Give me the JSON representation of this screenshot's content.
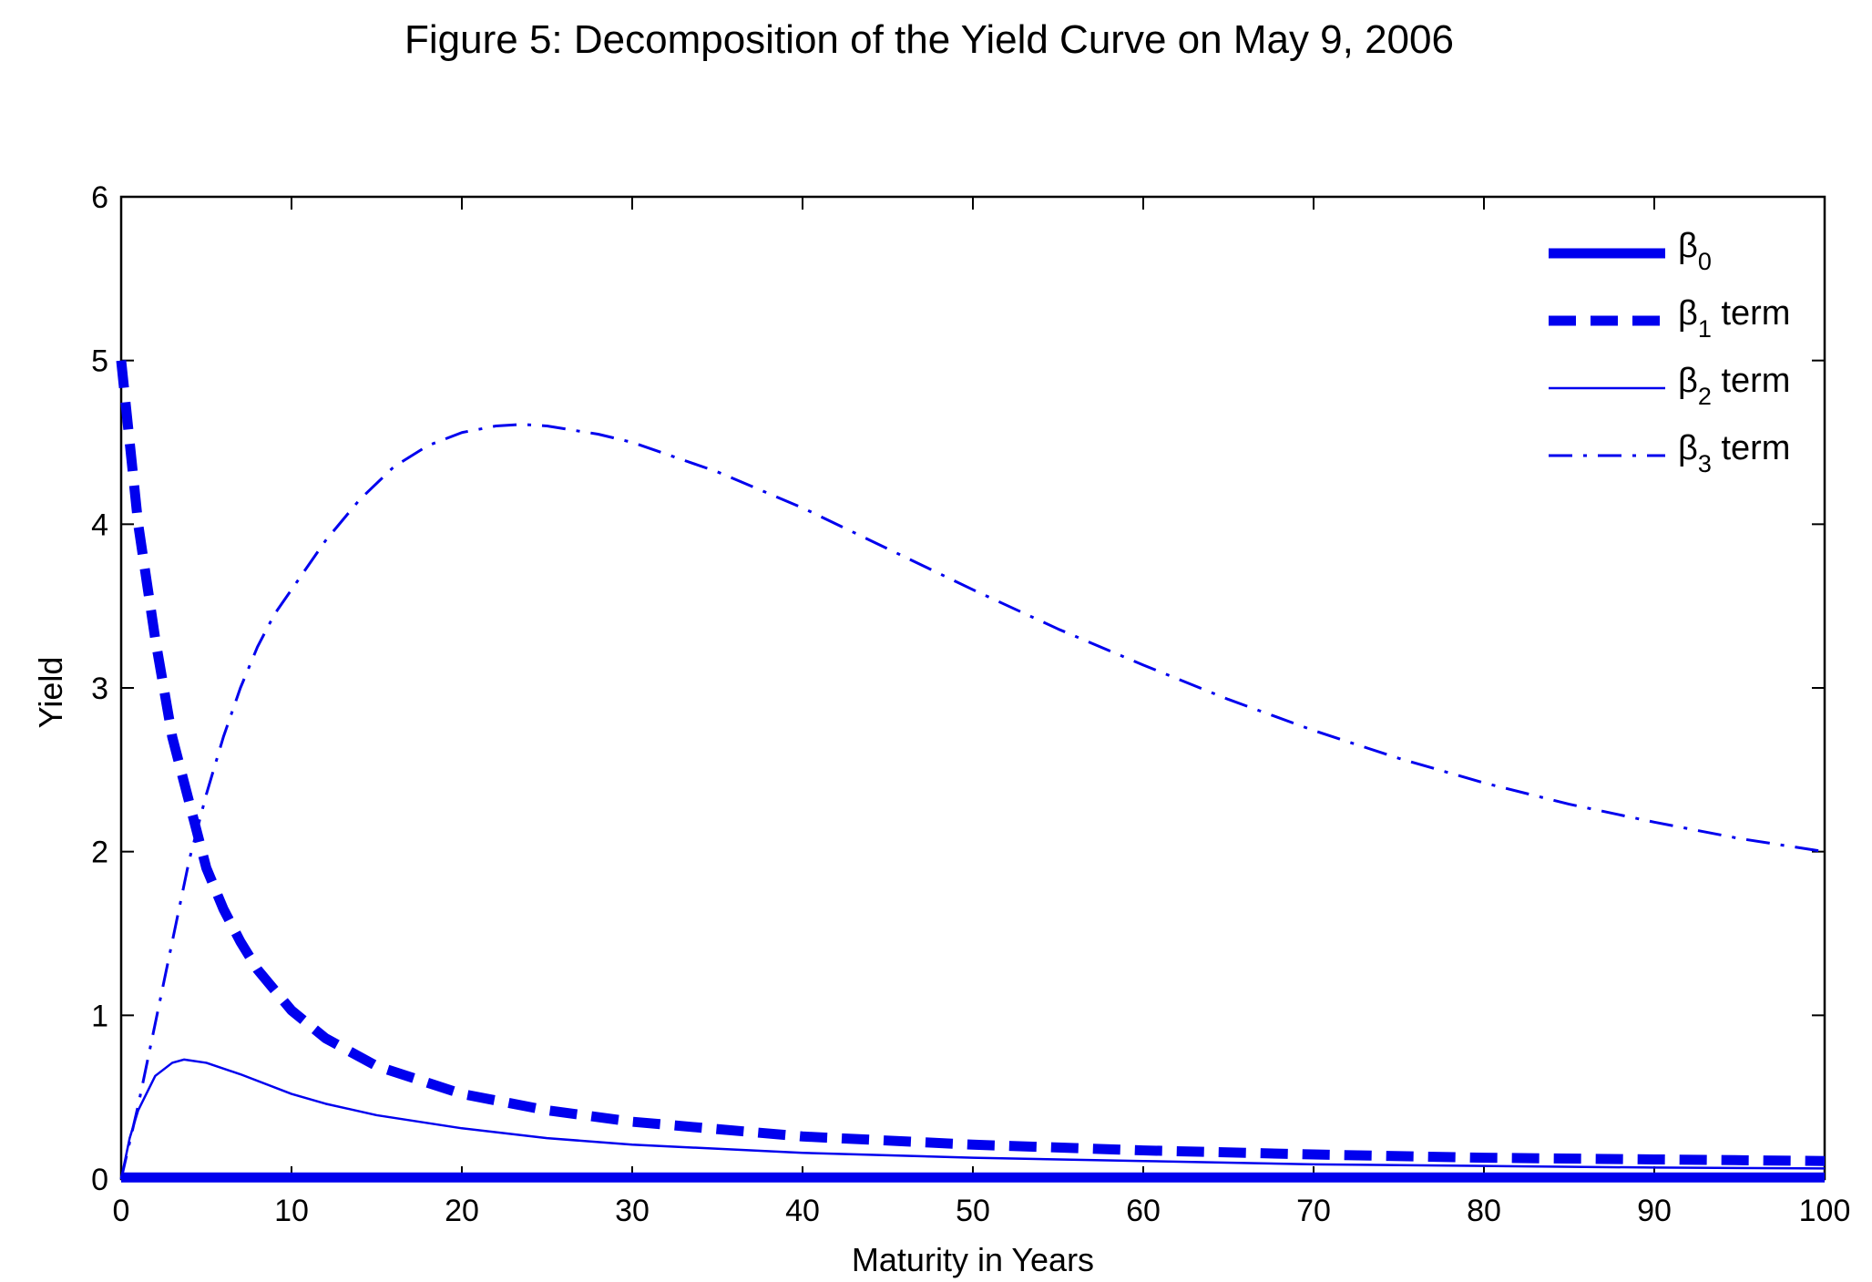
{
  "chart_data": {
    "type": "line",
    "title": "Figure 5: Decomposition of the Yield Curve on May 9, 2006",
    "xlabel": "Maturity in Years",
    "ylabel": "Yield",
    "xlim": [
      0,
      100
    ],
    "ylim": [
      0,
      6
    ],
    "xticks": [
      "0",
      "10",
      "20",
      "30",
      "40",
      "50",
      "60",
      "70",
      "80",
      "90",
      "100"
    ],
    "yticks": [
      "0",
      "1",
      "2",
      "3",
      "4",
      "5",
      "6"
    ],
    "grid": false,
    "legend_position": "top-right",
    "line_color": "#0000ee",
    "series": [
      {
        "id": "b0",
        "legend_main": "β",
        "legend_sub": "0",
        "legend_suffix": "",
        "style": "thick-solid",
        "x": [
          0,
          100
        ],
        "y": [
          0.01,
          0.01
        ]
      },
      {
        "id": "b1",
        "legend_main": "β",
        "legend_sub": "1",
        "legend_suffix": " term",
        "style": "thick-dashed",
        "x": [
          0,
          1,
          2,
          3,
          4,
          5,
          6,
          7,
          8,
          10,
          12,
          15,
          20,
          25,
          30,
          40,
          50,
          60,
          70,
          80,
          90,
          100
        ],
        "y": [
          5.0,
          4.0,
          3.3,
          2.7,
          2.3,
          1.9,
          1.65,
          1.45,
          1.28,
          1.03,
          0.86,
          0.69,
          0.52,
          0.42,
          0.35,
          0.26,
          0.21,
          0.175,
          0.15,
          0.13,
          0.12,
          0.11
        ]
      },
      {
        "id": "b2",
        "legend_main": "β",
        "legend_sub": "2",
        "legend_suffix": " term",
        "style": "thin-solid",
        "x": [
          0,
          0.5,
          1,
          2,
          3,
          3.7,
          5,
          7,
          10,
          12,
          15,
          20,
          25,
          30,
          40,
          50,
          60,
          70,
          80,
          90,
          100
        ],
        "y": [
          0.0,
          0.25,
          0.42,
          0.63,
          0.71,
          0.73,
          0.71,
          0.64,
          0.52,
          0.46,
          0.39,
          0.31,
          0.25,
          0.21,
          0.16,
          0.13,
          0.11,
          0.09,
          0.08,
          0.07,
          0.065
        ]
      },
      {
        "id": "b3",
        "legend_main": "β",
        "legend_sub": "3",
        "legend_suffix": " term",
        "style": "dash-dot",
        "x": [
          0,
          1,
          2,
          3,
          4,
          5,
          6,
          7,
          8,
          9,
          10,
          12,
          14,
          16,
          18,
          20,
          22,
          23.5,
          25,
          28,
          30,
          35,
          40,
          45,
          50,
          55,
          60,
          65,
          70,
          75,
          80,
          85,
          90,
          95,
          100
        ],
        "y": [
          0.0,
          0.45,
          0.95,
          1.45,
          1.95,
          2.35,
          2.7,
          3.0,
          3.25,
          3.45,
          3.6,
          3.9,
          4.15,
          4.35,
          4.48,
          4.56,
          4.6,
          4.61,
          4.6,
          4.55,
          4.5,
          4.32,
          4.1,
          3.85,
          3.6,
          3.36,
          3.14,
          2.93,
          2.74,
          2.57,
          2.42,
          2.29,
          2.18,
          2.08,
          2.0
        ]
      }
    ]
  }
}
